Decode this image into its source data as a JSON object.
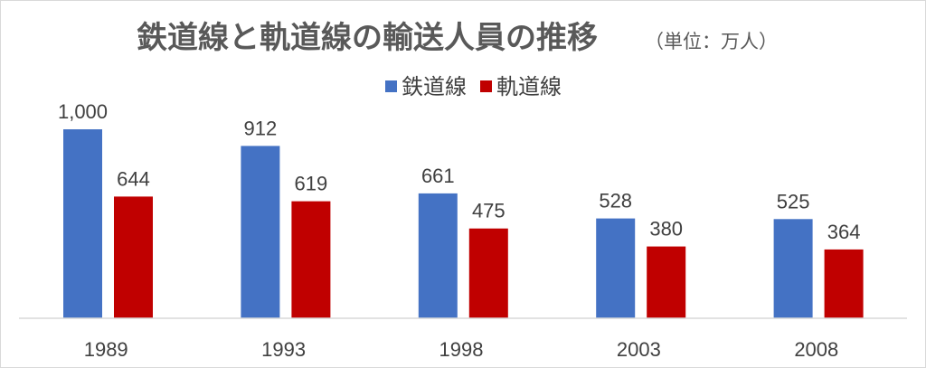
{
  "chart_data": {
    "type": "bar",
    "title": "鉄道線と軌道線の輸送人員の推移",
    "subtitle": "（単位：万人）",
    "categories": [
      "1989",
      "1993",
      "1998",
      "2003",
      "2008"
    ],
    "series": [
      {
        "name": "鉄道線",
        "color": "#4472c4",
        "values": [
          1000,
          912,
          661,
          528,
          525
        ],
        "labels": [
          "1,000",
          "912",
          "661",
          "528",
          "525"
        ]
      },
      {
        "name": "軌道線",
        "color": "#c00000",
        "values": [
          644,
          619,
          475,
          380,
          364
        ],
        "labels": [
          "644",
          "619",
          "475",
          "380",
          "364"
        ]
      }
    ],
    "ylim": [
      0,
      1000
    ],
    "grid": false,
    "legend": "top"
  }
}
